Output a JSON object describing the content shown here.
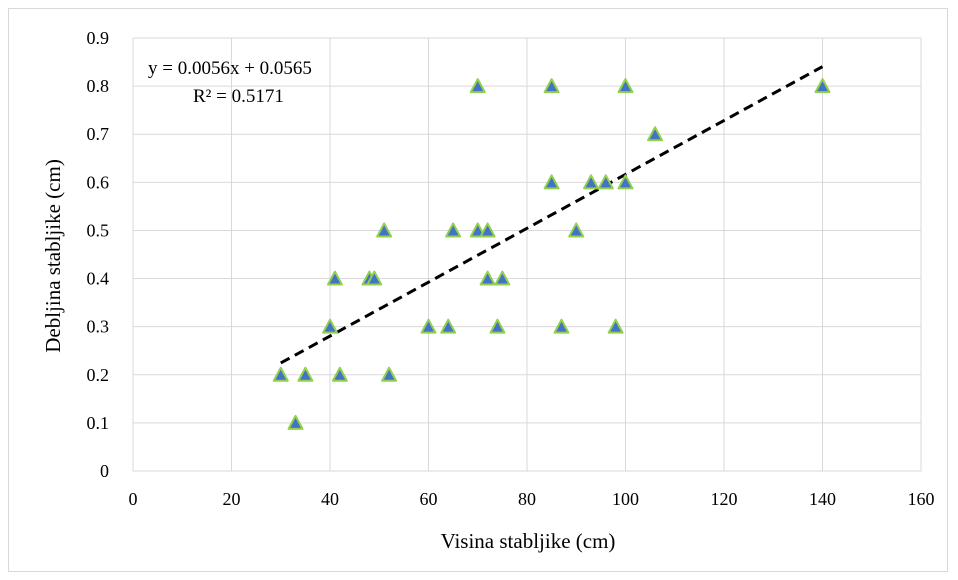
{
  "chart_data": {
    "type": "scatter",
    "xlabel": "Visina stabljike (cm)",
    "ylabel": "Debljina stabljike (cm)",
    "xlim": [
      0,
      160
    ],
    "ylim": [
      0,
      0.9
    ],
    "xticks": [
      0,
      20,
      40,
      60,
      80,
      100,
      120,
      140,
      160
    ],
    "yticks": [
      0,
      0.1,
      0.2,
      0.3,
      0.4,
      0.5,
      0.6,
      0.7,
      0.8,
      0.9
    ],
    "grid": true,
    "marker": "triangle",
    "marker_fill": "#4472c4",
    "marker_edge": "#92d050",
    "points": [
      {
        "x": 30,
        "y": 0.2
      },
      {
        "x": 33,
        "y": 0.1
      },
      {
        "x": 35,
        "y": 0.2
      },
      {
        "x": 40,
        "y": 0.3
      },
      {
        "x": 41,
        "y": 0.4
      },
      {
        "x": 42,
        "y": 0.2
      },
      {
        "x": 48,
        "y": 0.4
      },
      {
        "x": 49,
        "y": 0.4
      },
      {
        "x": 51,
        "y": 0.5
      },
      {
        "x": 52,
        "y": 0.2
      },
      {
        "x": 60,
        "y": 0.3
      },
      {
        "x": 64,
        "y": 0.3
      },
      {
        "x": 65,
        "y": 0.5
      },
      {
        "x": 70,
        "y": 0.8
      },
      {
        "x": 70,
        "y": 0.5
      },
      {
        "x": 72,
        "y": 0.5
      },
      {
        "x": 72,
        "y": 0.4
      },
      {
        "x": 74,
        "y": 0.3
      },
      {
        "x": 75,
        "y": 0.4
      },
      {
        "x": 85,
        "y": 0.8
      },
      {
        "x": 85,
        "y": 0.6
      },
      {
        "x": 87,
        "y": 0.3
      },
      {
        "x": 90,
        "y": 0.5
      },
      {
        "x": 93,
        "y": 0.6
      },
      {
        "x": 96,
        "y": 0.6
      },
      {
        "x": 98,
        "y": 0.3
      },
      {
        "x": 100,
        "y": 0.8
      },
      {
        "x": 100,
        "y": 0.6
      },
      {
        "x": 106,
        "y": 0.7
      },
      {
        "x": 140,
        "y": 0.8
      }
    ],
    "trendline": {
      "type": "linear",
      "slope": 0.0056,
      "intercept": 0.0565,
      "x_range": [
        30,
        140
      ],
      "style": "dashed",
      "color": "#000000",
      "equation": "y = 0.0056x  + 0.0565",
      "r_squared": "R² = 0.5171"
    }
  }
}
